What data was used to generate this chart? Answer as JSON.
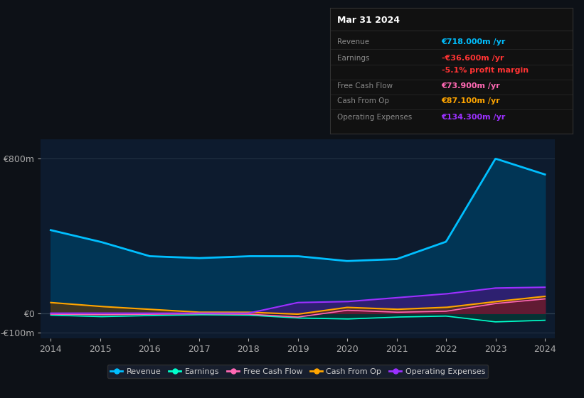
{
  "background_color": "#0d1117",
  "plot_bg_color": "#0d1b2e",
  "grid_color": "#2a3a4a",
  "years": [
    2014,
    2015,
    2016,
    2017,
    2018,
    2019,
    2020,
    2021,
    2022,
    2023,
    2024
  ],
  "revenue": [
    430,
    370,
    295,
    285,
    295,
    295,
    270,
    280,
    370,
    800,
    718
  ],
  "earnings": [
    -10,
    -18,
    -12,
    -8,
    -10,
    -25,
    -30,
    -20,
    -15,
    -45,
    -36.6
  ],
  "free_cash_flow": [
    -5,
    -8,
    -5,
    -3,
    -5,
    -20,
    15,
    5,
    10,
    50,
    73.9
  ],
  "cash_from_op": [
    55,
    35,
    20,
    5,
    5,
    -5,
    30,
    20,
    30,
    60,
    87.1
  ],
  "operating_expenses": [
    0,
    0,
    0,
    0,
    0,
    55,
    60,
    80,
    100,
    130,
    134.3
  ],
  "revenue_color": "#00bfff",
  "earnings_color": "#00ffcc",
  "fcf_color": "#ff69b4",
  "cashop_color": "#ffa500",
  "opex_color": "#9b30ff",
  "revenue_fill": "#003a5c",
  "earnings_fill": "#004a3a",
  "opex_fill": "#3d1a7a",
  "ylim_min": -130,
  "ylim_max": 900,
  "yticks": [
    -100,
    0,
    800
  ],
  "ytick_labels": [
    "-€100m",
    "€0",
    "€800m"
  ],
  "panel_title": "Mar 31 2024",
  "panel_revenue": "€718.000m /yr",
  "panel_earnings": "-€36.600m /yr",
  "panel_margin": "-5.1% profit margin",
  "panel_fcf": "€73.900m /yr",
  "panel_cashop": "€87.100m /yr",
  "panel_opex": "€134.300m /yr",
  "legend_labels": [
    "Revenue",
    "Earnings",
    "Free Cash Flow",
    "Cash From Op",
    "Operating Expenses"
  ],
  "legend_colors": [
    "#00bfff",
    "#00ffcc",
    "#ff69b4",
    "#ffa500",
    "#9b30ff"
  ]
}
